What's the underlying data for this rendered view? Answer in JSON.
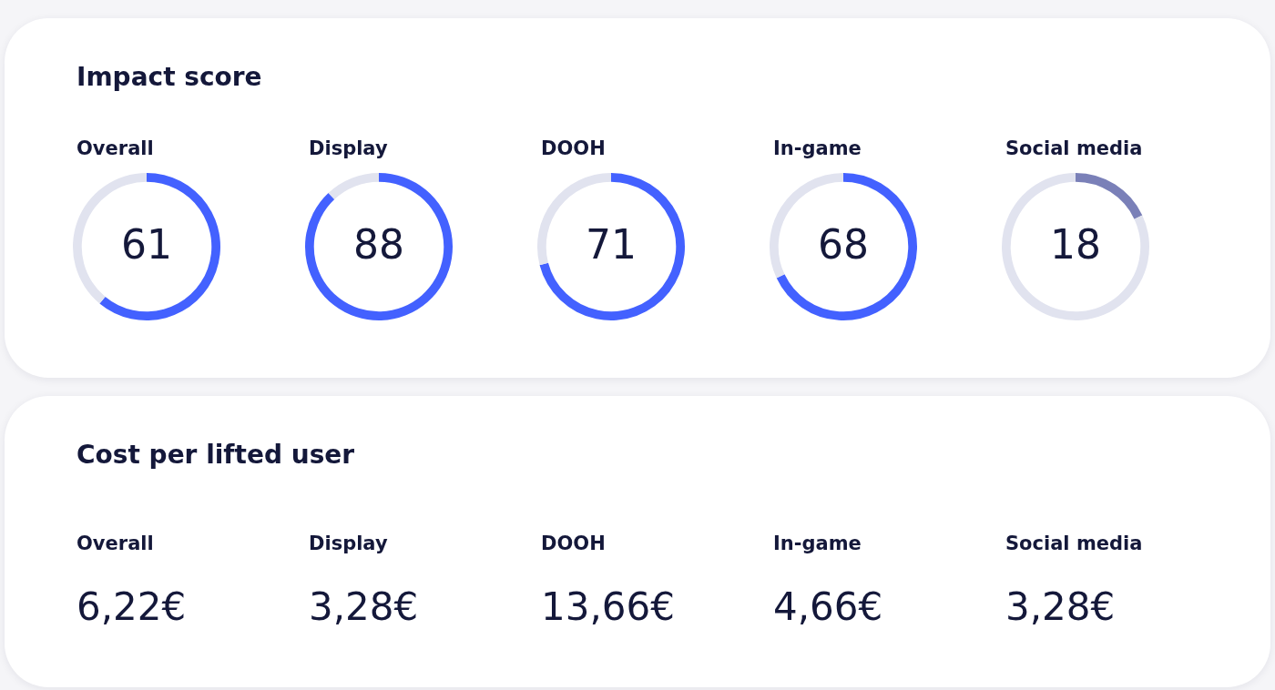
{
  "chart_data": [
    {
      "type": "other",
      "title": "Impact score"
    },
    {
      "type": "donut",
      "title": "Overall",
      "categories": [
        null,
        null
      ],
      "values": [
        61,
        39
      ],
      "colors": [
        "#4361ff",
        "#e1e3ef"
      ],
      "value_labels": [
        "61",
        null
      ]
    },
    {
      "type": "donut",
      "title": "Display",
      "categories": [
        null,
        null
      ],
      "values": [
        88,
        12
      ],
      "colors": [
        "#4361ff",
        "#e1e3ef"
      ],
      "value_labels": [
        "88",
        null
      ]
    },
    {
      "type": "donut",
      "title": "DOOH",
      "categories": [
        null,
        null
      ],
      "values": [
        71,
        29
      ],
      "colors": [
        "#4361ff",
        "#e1e3ef"
      ],
      "value_labels": [
        "71",
        null
      ]
    },
    {
      "type": "donut",
      "title": "In-game",
      "categories": [
        null,
        null
      ],
      "values": [
        68,
        32
      ],
      "colors": [
        "#4361ff",
        "#e1e3ef"
      ],
      "value_labels": [
        "68",
        null
      ]
    },
    {
      "type": "donut",
      "title": "Social media",
      "categories": [
        null,
        null
      ],
      "values": [
        18,
        82
      ],
      "colors": [
        "#7a80b8",
        "#e1e3ef"
      ],
      "value_labels": [
        "18",
        null
      ]
    },
    {
      "type": "other",
      "title": "Cost per lifted user",
      "categories": [
        "Overall",
        "Display",
        "DOOH",
        "In-game",
        "Social media"
      ],
      "values": [
        6.22,
        3.28,
        13.66,
        4.66,
        3.28
      ],
      "value_labels": [
        "6,22€",
        "3,28€",
        "13,66€",
        "4,66€",
        "3,28€"
      ]
    }
  ]
}
